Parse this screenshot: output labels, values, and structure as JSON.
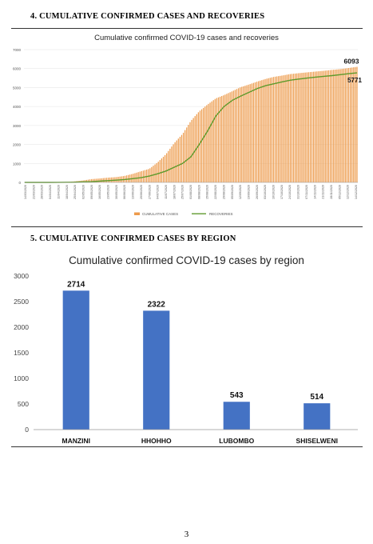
{
  "section4": {
    "heading": "4.  CUMULATIVE CONFIRMED CASES AND RECOVERIES"
  },
  "section5": {
    "heading": "5.  CUMULATIVE CONFIRMED CASES BY REGION"
  },
  "page_number": "3",
  "colors": {
    "cases": "#ED9B4C",
    "recoveries": "#5E9A2C",
    "region_bar": "#4472C4"
  },
  "chart_data": [
    {
      "type": "bar",
      "title": "Cumulative confirmed COVID-19 cases and recoveries",
      "ylim": [
        0,
        7000
      ],
      "yticks": [
        0,
        1000,
        2000,
        3000,
        4000,
        5000,
        6000,
        7000
      ],
      "xticks": [
        "14/03/2020",
        "21/03/2020",
        "28/03/2020",
        "04/04/2020",
        "11/04/2020",
        "18/04/2020",
        "25/04/2020",
        "02/05/2020",
        "09/05/2020",
        "16/05/2020",
        "23/05/2020",
        "30/05/2020",
        "06/06/2020",
        "13/06/2020",
        "20/06/2020",
        "27/06/2020",
        "04/07/2020",
        "11/07/2020",
        "18/07/2020",
        "25/07/2020",
        "01/08/2020",
        "08/08/2020",
        "15/08/2020",
        "22/08/2020",
        "29/08/2020",
        "05/09/2020",
        "12/09/2020",
        "19/09/2020",
        "26/09/2020",
        "03/10/2020",
        "10/10/2020",
        "17/10/2020",
        "24/10/2020",
        "31/10/2020",
        "07/11/2020",
        "14/11/2020",
        "21/11/2020",
        "28/11/2020",
        "05/12/2020",
        "12/12/2020",
        "14/12/2020"
      ],
      "series": [
        {
          "name": "CUMULATIVE CASES",
          "kind": "bar",
          "end_label": "6093",
          "values": [
            1,
            9,
            9,
            12,
            14,
            22,
            56,
            100,
            172,
            205,
            250,
            279,
            340,
            449,
            586,
            717,
            1056,
            1489,
            2073,
            2552,
            3243,
            3745,
            4103,
            4426,
            4602,
            4808,
            5021,
            5160,
            5315,
            5453,
            5563,
            5633,
            5712,
            5758,
            5800,
            5843,
            5880,
            5930,
            5972,
            6030,
            6093
          ]
        },
        {
          "name": "RECOVERIES",
          "kind": "line",
          "end_label": "5771",
          "values": [
            0,
            0,
            0,
            1,
            5,
            8,
            12,
            28,
            40,
            66,
            91,
            120,
            150,
            200,
            250,
            333,
            455,
            600,
            800,
            1000,
            1350,
            2000,
            2700,
            3500,
            4000,
            4330,
            4550,
            4750,
            4950,
            5100,
            5200,
            5300,
            5390,
            5450,
            5500,
            5550,
            5590,
            5630,
            5680,
            5730,
            5771
          ]
        }
      ]
    },
    {
      "type": "bar",
      "title": "Cumulative confirmed COVID-19 cases by region",
      "categories": [
        "MANZINI",
        "HHOHHO",
        "LUBOMBO",
        "SHISELWENI"
      ],
      "values": [
        2714,
        2322,
        543,
        514
      ],
      "ylim": [
        0,
        3000
      ],
      "yticks": [
        0,
        500,
        1000,
        1500,
        2000,
        2500,
        3000
      ]
    }
  ]
}
